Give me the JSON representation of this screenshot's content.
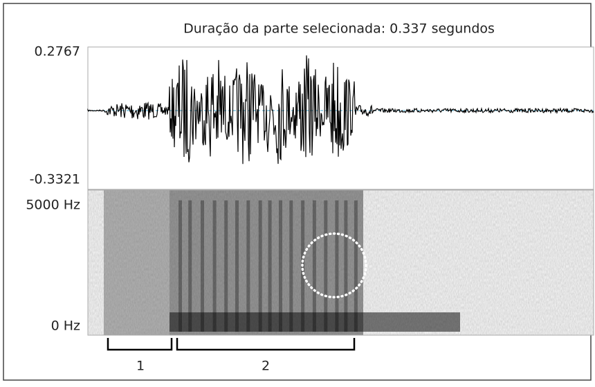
{
  "title": "Duração da parte selecionada: 0.337 segundos",
  "waveform": {
    "max_label": "0.2767",
    "min_label": "-0.3321"
  },
  "spectrogram": {
    "top_label": "5000 Hz",
    "bottom_label": "0 Hz"
  },
  "segments": [
    "1",
    "2"
  ]
}
